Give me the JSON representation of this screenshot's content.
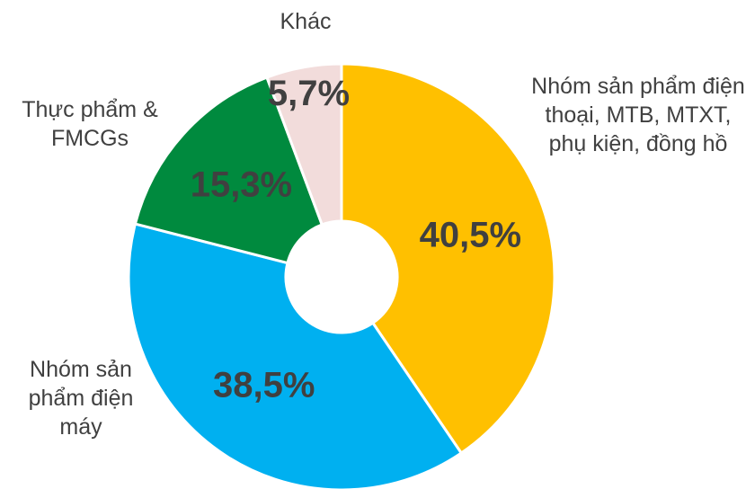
{
  "chart_data": {
    "type": "donut",
    "categories": [
      "Nhóm sản phẩm điện thoại, MTB, MTXT, phụ kiện, đồng hồ",
      "Nhóm sản phẩm điện máy",
      "Thực phẩm & FMCGs",
      "Khác"
    ],
    "values": [
      40.5,
      38.5,
      15.3,
      5.7
    ],
    "value_labels": [
      "40,5%",
      "38,5%",
      "15,3%",
      "5,7%"
    ],
    "colors": [
      "#FFC000",
      "#00B0F0",
      "#008A3E",
      "#F2DCDB"
    ]
  }
}
